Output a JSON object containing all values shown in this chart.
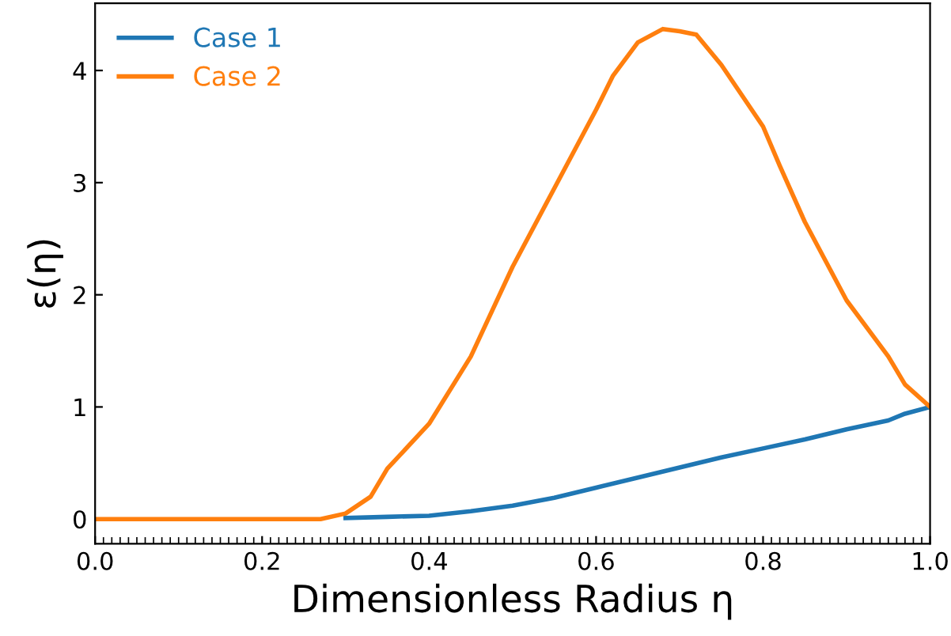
{
  "chart_data": {
    "type": "line",
    "xlabel": "Dimensionless Radius η",
    "ylabel": "ε(η)",
    "xlim": [
      0,
      1
    ],
    "ylim": [
      -0.22,
      4.6
    ],
    "xticks": [
      {
        "value": 0.0,
        "label": "0.0"
      },
      {
        "value": 0.2,
        "label": "0.2"
      },
      {
        "value": 0.4,
        "label": "0.4"
      },
      {
        "value": 0.6,
        "label": "0.6"
      },
      {
        "value": 0.8,
        "label": "0.8"
      },
      {
        "value": 1.0,
        "label": "1.0"
      }
    ],
    "yticks": [
      0,
      1,
      2,
      3,
      4
    ],
    "legend": "top left",
    "grid": false,
    "series": [
      {
        "name": "Case 1",
        "color": "#1f77b4",
        "x": [
          0.3,
          0.35,
          0.4,
          0.45,
          0.5,
          0.55,
          0.6,
          0.65,
          0.7,
          0.75,
          0.8,
          0.85,
          0.9,
          0.95,
          0.97,
          1.0
        ],
        "values": [
          0.01,
          0.02,
          0.03,
          0.07,
          0.12,
          0.19,
          0.28,
          0.37,
          0.46,
          0.55,
          0.63,
          0.71,
          0.8,
          0.88,
          0.94,
          1.0
        ]
      },
      {
        "name": "Case 2",
        "color": "#ff7f0e",
        "x": [
          0,
          0.1,
          0.2,
          0.27,
          0.3,
          0.33,
          0.35,
          0.4,
          0.45,
          0.5,
          0.55,
          0.6,
          0.62,
          0.65,
          0.68,
          0.7,
          0.72,
          0.75,
          0.8,
          0.82,
          0.85,
          0.9,
          0.95,
          0.97,
          1.0
        ],
        "values": [
          0,
          0,
          0,
          0,
          0.05,
          0.2,
          0.45,
          0.85,
          1.45,
          2.25,
          2.95,
          3.65,
          3.95,
          4.25,
          4.37,
          4.35,
          4.32,
          4.05,
          3.5,
          3.15,
          2.65,
          1.95,
          1.45,
          1.2,
          1.0
        ]
      }
    ]
  }
}
